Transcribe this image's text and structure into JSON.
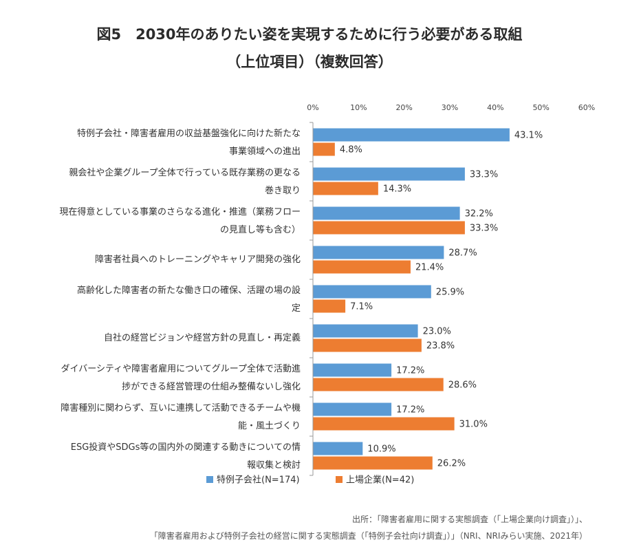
{
  "title": {
    "line1": "図5　2030年のありたい姿を実現するために行う必要がある取組",
    "line2": "（上位項目）（複数回答）"
  },
  "chart_data": {
    "type": "bar",
    "orientation": "horizontal",
    "categories": [
      [
        "特例子会社・障害者雇用の収益基盤強化に向けた新たな",
        "事業領域への進出"
      ],
      [
        "親会社や企業グループ全体で行っている既存業務の更なる",
        "巻き取り"
      ],
      [
        "現在得意としている事業のさらなる進化・推進（業務フロー",
        "の見直し等も含む）"
      ],
      [
        "障害者社員へのトレーニングやキャリア開発の強化"
      ],
      [
        "高齢化した障害者の新たな働き口の確保、活躍の場の設",
        "定"
      ],
      [
        "自社の経営ビジョンや経営方針の見直し・再定義"
      ],
      [
        "ダイバーシティや障害者雇用についてグループ全体で活動進",
        "捗ができる経営管理の仕組み整備ないし強化"
      ],
      [
        "障害種別に関わらず、互いに連携して活動できるチームや機",
        "能・風土づくり"
      ],
      [
        "ESG投資やSDGs等の国内外の関連する動きについての情",
        "報収集と検討"
      ]
    ],
    "series": [
      {
        "name": "特例子会社(N=174)",
        "color": "#5b9bd5",
        "values": [
          43.1,
          33.3,
          32.2,
          28.7,
          25.9,
          23.0,
          17.2,
          17.2,
          10.9
        ],
        "labels": [
          "43.1%",
          "33.3%",
          "32.2%",
          "28.7%",
          "25.9%",
          "23.0%",
          "17.2%",
          "17.2%",
          "10.9%"
        ]
      },
      {
        "name": "上場企業(N=42)",
        "color": "#ed7d31",
        "values": [
          4.8,
          14.3,
          33.3,
          21.4,
          7.1,
          23.8,
          28.6,
          31.0,
          26.2
        ],
        "labels": [
          "4.8%",
          "14.3%",
          "33.3%",
          "21.4%",
          "7.1%",
          "23.8%",
          "28.6%",
          "31.0%",
          "26.2%"
        ]
      }
    ],
    "xlim": [
      0,
      60
    ],
    "xticks": [
      "0%",
      "10%",
      "20%",
      "30%",
      "40%",
      "50%",
      "60%"
    ],
    "xaxis_position": "top",
    "legend_position": "bottom-center",
    "grid": false
  },
  "source": {
    "line1": "出所：「障害者雇用に関する実態調査（「上場企業向け調査」）」、",
    "line2": "「障害者雇用および特例子会社の経営に関する実態調査（「特例子会社向け調査」）」（NRI、NRIみらい実施、2021年）"
  }
}
